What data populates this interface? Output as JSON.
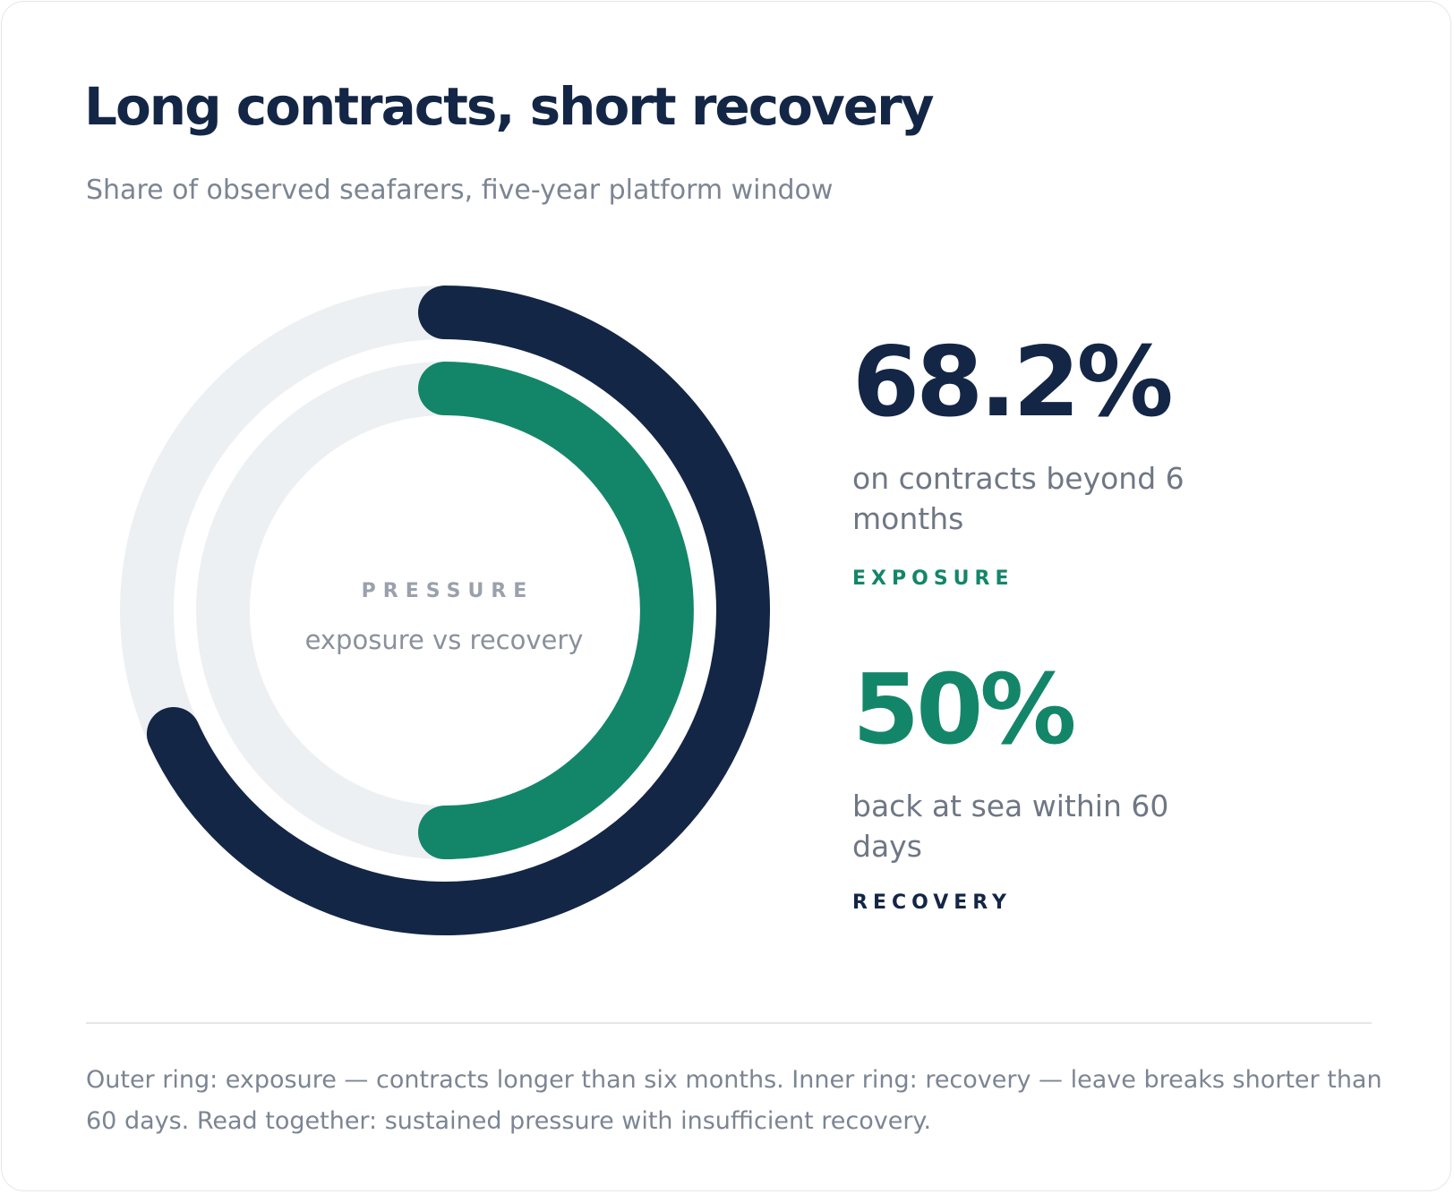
{
  "title": "Long contracts, short recovery",
  "subtitle": "Share of observed seafarers, five-year platform window",
  "colors": {
    "navy": "#142646",
    "green": "#138669",
    "track": "#edf0f2",
    "text_muted": "#7c8593"
  },
  "chart_data": {
    "type": "radial-bar",
    "center_label": "PRESSURE",
    "center_sublabel": "exposure vs recovery",
    "series": [
      {
        "ring": "outer",
        "value": 68.2,
        "unit": "%",
        "color": "#142646"
      },
      {
        "ring": "inner",
        "value": 50,
        "unit": "%",
        "color": "#138669"
      }
    ]
  },
  "stats": [
    {
      "value": "68.2%",
      "description": "on contracts beyond 6 months",
      "tag": "EXPOSURE"
    },
    {
      "value": "50%",
      "description": "back at sea within 60 days",
      "tag": "RECOVERY"
    }
  ],
  "footnote": "Outer ring: exposure — contracts longer than six months. Inner ring: recovery — leave breaks shorter than 60 days. Read together: sustained pressure with insufficient recovery."
}
